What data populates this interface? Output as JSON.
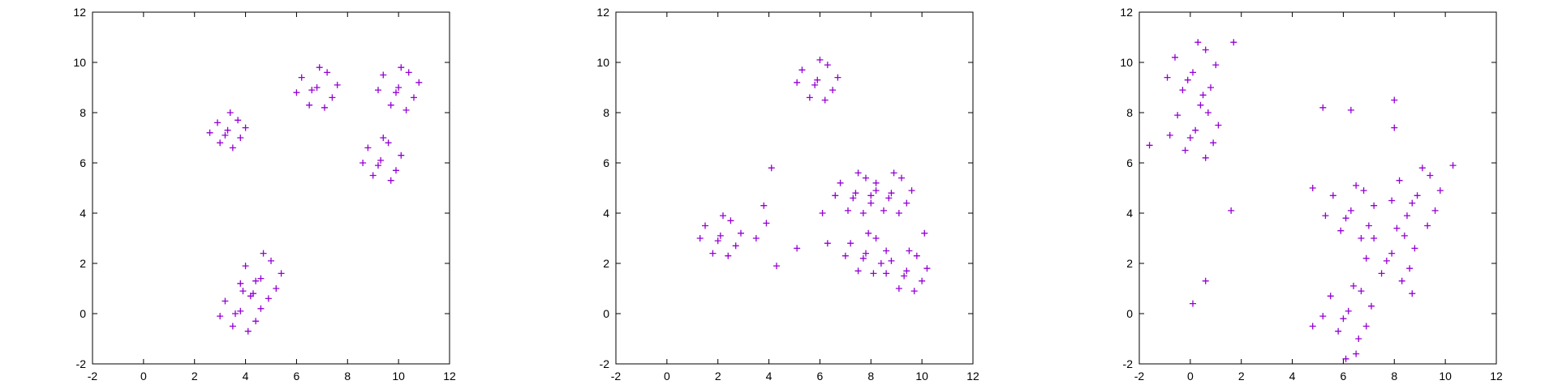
{
  "style": {
    "marker_color": "#9400d3",
    "marker": "plus",
    "background": "#ffffff",
    "axis_color": "#000000"
  },
  "chart_data": [
    {
      "type": "scatter",
      "title": "",
      "xlabel": "",
      "ylabel": "",
      "xlim": [
        -2,
        12
      ],
      "ylim": [
        -2,
        12
      ],
      "xticks": [
        -2,
        0,
        2,
        4,
        6,
        8,
        10,
        12
      ],
      "yticks": [
        -2,
        0,
        2,
        4,
        6,
        8,
        10,
        12
      ],
      "grid": false,
      "legend": "none",
      "series": [
        {
          "points": [
            [
              3.3,
              7.3
            ],
            [
              2.9,
              7.6
            ],
            [
              3.8,
              7.0
            ],
            [
              3.4,
              8.0
            ],
            [
              3.0,
              6.8
            ],
            [
              3.7,
              7.7
            ],
            [
              2.6,
              7.2
            ],
            [
              4.0,
              7.4
            ],
            [
              3.2,
              7.1
            ],
            [
              3.5,
              6.6
            ],
            [
              6.8,
              9.0
            ],
            [
              6.2,
              9.4
            ],
            [
              7.4,
              8.6
            ],
            [
              6.5,
              8.3
            ],
            [
              7.2,
              9.6
            ],
            [
              6.0,
              8.8
            ],
            [
              7.6,
              9.1
            ],
            [
              6.9,
              9.8
            ],
            [
              6.6,
              8.9
            ],
            [
              7.1,
              8.2
            ],
            [
              10.0,
              9.0
            ],
            [
              9.4,
              9.5
            ],
            [
              10.6,
              8.6
            ],
            [
              9.7,
              8.3
            ],
            [
              10.4,
              9.6
            ],
            [
              9.2,
              8.9
            ],
            [
              10.8,
              9.2
            ],
            [
              10.1,
              9.8
            ],
            [
              9.9,
              8.8
            ],
            [
              10.3,
              8.1
            ],
            [
              9.3,
              6.1
            ],
            [
              8.8,
              6.6
            ],
            [
              9.9,
              5.7
            ],
            [
              9.0,
              5.5
            ],
            [
              9.6,
              6.8
            ],
            [
              8.6,
              6.0
            ],
            [
              10.1,
              6.3
            ],
            [
              9.4,
              7.0
            ],
            [
              9.2,
              5.9
            ],
            [
              9.7,
              5.3
            ],
            [
              4.6,
              1.4
            ],
            [
              4.0,
              1.9
            ],
            [
              5.2,
              1.0
            ],
            [
              4.3,
              0.8
            ],
            [
              5.0,
              2.1
            ],
            [
              3.8,
              1.2
            ],
            [
              5.4,
              1.6
            ],
            [
              4.7,
              2.4
            ],
            [
              4.4,
              1.3
            ],
            [
              4.9,
              0.6
            ],
            [
              3.8,
              0.1
            ],
            [
              3.2,
              0.5
            ],
            [
              4.4,
              -0.3
            ],
            [
              3.5,
              -0.5
            ],
            [
              4.2,
              0.7
            ],
            [
              3.0,
              -0.1
            ],
            [
              4.6,
              0.2
            ],
            [
              3.9,
              0.9
            ],
            [
              3.6,
              0.0
            ],
            [
              4.1,
              -0.7
            ]
          ]
        }
      ]
    },
    {
      "type": "scatter",
      "title": "",
      "xlabel": "",
      "ylabel": "",
      "xlim": [
        -2,
        12
      ],
      "ylim": [
        -2,
        12
      ],
      "xticks": [
        -2,
        0,
        2,
        4,
        6,
        8,
        10,
        12
      ],
      "yticks": [
        -2,
        0,
        2,
        4,
        6,
        8,
        10,
        12
      ],
      "grid": false,
      "legend": "none",
      "series": [
        {
          "points": [
            [
              5.9,
              9.3
            ],
            [
              5.3,
              9.7
            ],
            [
              6.5,
              8.9
            ],
            [
              5.6,
              8.6
            ],
            [
              6.3,
              9.9
            ],
            [
              5.1,
              9.2
            ],
            [
              6.7,
              9.4
            ],
            [
              6.0,
              10.1
            ],
            [
              5.8,
              9.1
            ],
            [
              6.2,
              8.5
            ],
            [
              2.1,
              3.1
            ],
            [
              1.5,
              3.5
            ],
            [
              2.7,
              2.7
            ],
            [
              1.8,
              2.4
            ],
            [
              2.5,
              3.7
            ],
            [
              1.3,
              3.0
            ],
            [
              2.9,
              3.2
            ],
            [
              2.2,
              3.9
            ],
            [
              2.0,
              2.9
            ],
            [
              2.4,
              2.3
            ],
            [
              7.4,
              4.8
            ],
            [
              6.8,
              5.2
            ],
            [
              8.0,
              4.4
            ],
            [
              7.1,
              4.1
            ],
            [
              7.8,
              5.4
            ],
            [
              6.6,
              4.7
            ],
            [
              8.2,
              4.9
            ],
            [
              7.5,
              5.6
            ],
            [
              7.3,
              4.6
            ],
            [
              7.7,
              4.0
            ],
            [
              8.8,
              4.8
            ],
            [
              8.2,
              5.2
            ],
            [
              9.4,
              4.4
            ],
            [
              8.5,
              4.1
            ],
            [
              9.2,
              5.4
            ],
            [
              8.0,
              4.7
            ],
            [
              9.6,
              4.9
            ],
            [
              8.9,
              5.6
            ],
            [
              8.7,
              4.6
            ],
            [
              9.1,
              4.0
            ],
            [
              7.8,
              2.4
            ],
            [
              7.2,
              2.8
            ],
            [
              8.4,
              2.0
            ],
            [
              7.5,
              1.7
            ],
            [
              8.2,
              3.0
            ],
            [
              7.0,
              2.3
            ],
            [
              8.6,
              2.5
            ],
            [
              7.9,
              3.2
            ],
            [
              7.7,
              2.2
            ],
            [
              8.1,
              1.6
            ],
            [
              9.4,
              1.7
            ],
            [
              8.8,
              2.1
            ],
            [
              10.0,
              1.3
            ],
            [
              9.1,
              1.0
            ],
            [
              9.8,
              2.3
            ],
            [
              8.6,
              1.6
            ],
            [
              10.2,
              1.8
            ],
            [
              9.5,
              2.5
            ],
            [
              9.3,
              1.5
            ],
            [
              9.7,
              0.9
            ],
            [
              4.1,
              5.8
            ],
            [
              3.8,
              4.3
            ],
            [
              3.9,
              3.6
            ],
            [
              3.5,
              3.0
            ],
            [
              5.1,
              2.6
            ],
            [
              4.3,
              1.9
            ],
            [
              6.1,
              4.0
            ],
            [
              10.1,
              3.2
            ],
            [
              6.3,
              2.8
            ]
          ]
        }
      ]
    },
    {
      "type": "scatter",
      "title": "",
      "xlabel": "",
      "ylabel": "",
      "xlim": [
        -2,
        12
      ],
      "ylim": [
        -2,
        12
      ],
      "xticks": [
        -2,
        0,
        2,
        4,
        6,
        8,
        10,
        12
      ],
      "yticks": [
        -2,
        0,
        2,
        4,
        6,
        8,
        10,
        12
      ],
      "grid": false,
      "legend": "none",
      "series": [
        {
          "points": [
            [
              0.1,
              9.6
            ],
            [
              -0.6,
              10.2
            ],
            [
              0.8,
              9.0
            ],
            [
              -0.3,
              8.9
            ],
            [
              0.6,
              10.5
            ],
            [
              -0.9,
              9.4
            ],
            [
              1.0,
              9.9
            ],
            [
              0.3,
              10.8
            ],
            [
              -0.1,
              9.3
            ],
            [
              0.5,
              8.7
            ],
            [
              0.2,
              7.3
            ],
            [
              -0.5,
              7.9
            ],
            [
              0.9,
              6.8
            ],
            [
              -0.2,
              6.5
            ],
            [
              0.7,
              8.0
            ],
            [
              -0.8,
              7.1
            ],
            [
              1.1,
              7.5
            ],
            [
              0.4,
              8.3
            ],
            [
              0.0,
              7.0
            ],
            [
              0.6,
              6.2
            ],
            [
              6.3,
              4.1
            ],
            [
              5.6,
              4.7
            ],
            [
              7.0,
              3.5
            ],
            [
              5.9,
              3.3
            ],
            [
              6.8,
              4.9
            ],
            [
              5.3,
              3.9
            ],
            [
              7.2,
              4.3
            ],
            [
              6.5,
              5.1
            ],
            [
              6.1,
              3.8
            ],
            [
              6.7,
              3.0
            ],
            [
              8.9,
              4.7
            ],
            [
              8.2,
              5.3
            ],
            [
              9.6,
              4.1
            ],
            [
              8.5,
              3.9
            ],
            [
              9.4,
              5.5
            ],
            [
              7.9,
              4.5
            ],
            [
              9.8,
              4.9
            ],
            [
              9.1,
              5.8
            ],
            [
              8.7,
              4.4
            ],
            [
              9.3,
              3.5
            ],
            [
              7.9,
              2.4
            ],
            [
              7.2,
              3.0
            ],
            [
              8.6,
              1.8
            ],
            [
              7.5,
              1.6
            ],
            [
              8.4,
              3.1
            ],
            [
              6.9,
              2.2
            ],
            [
              8.8,
              2.6
            ],
            [
              8.1,
              3.4
            ],
            [
              7.7,
              2.1
            ],
            [
              8.3,
              1.3
            ],
            [
              6.2,
              0.1
            ],
            [
              5.5,
              0.7
            ],
            [
              6.9,
              -0.5
            ],
            [
              5.8,
              -0.7
            ],
            [
              6.7,
              0.9
            ],
            [
              5.2,
              -0.1
            ],
            [
              7.1,
              0.3
            ],
            [
              6.4,
              1.1
            ],
            [
              6.0,
              -0.2
            ],
            [
              6.6,
              -1.0
            ],
            [
              5.2,
              8.2
            ],
            [
              6.3,
              8.1
            ],
            [
              8.0,
              8.5
            ],
            [
              8.0,
              7.4
            ],
            [
              1.6,
              4.1
            ],
            [
              0.1,
              0.4
            ],
            [
              0.6,
              1.3
            ],
            [
              4.8,
              5.0
            ],
            [
              10.3,
              5.9
            ],
            [
              8.7,
              0.8
            ],
            [
              6.1,
              -1.8
            ],
            [
              6.5,
              -1.6
            ],
            [
              4.8,
              -0.5
            ],
            [
              -1.6,
              6.7
            ],
            [
              1.7,
              10.8
            ]
          ]
        }
      ]
    }
  ]
}
